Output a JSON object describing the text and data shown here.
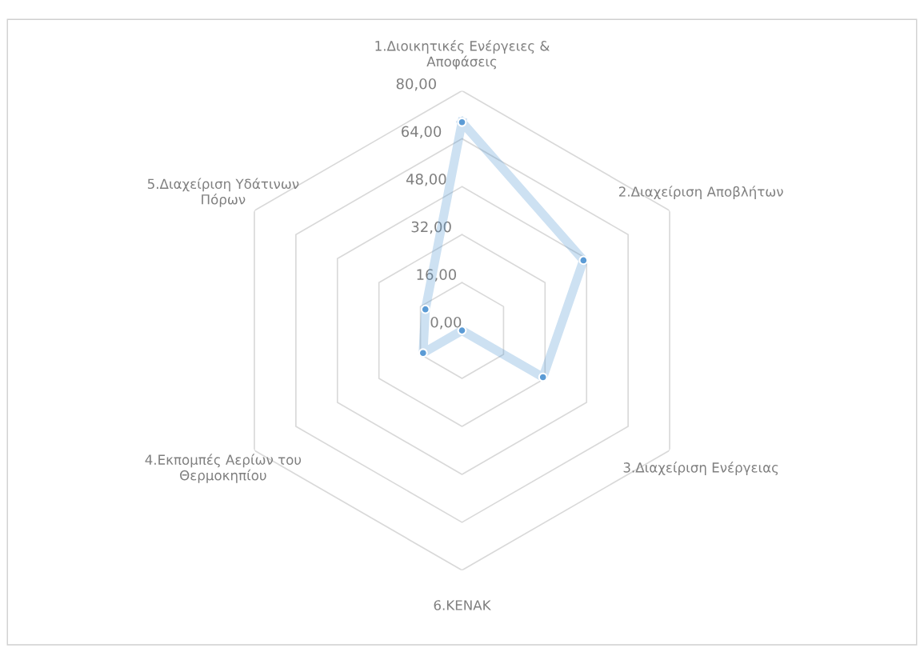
{
  "chart_data": {
    "type": "radar",
    "categories": [
      "1.Διοικητικές Ενέργειες &\nΑποφάσεις",
      "2.Διαχείριση Αποβλήτων",
      "3.Διαχείριση Ενέργειας",
      "6.ΚΕΝΑΚ",
      "4.Εκπομπές Αερίων του\nΘερμοκηπίου",
      "5.Διαχείριση Υδάτινων\nΠόρων"
    ],
    "series": [
      {
        "color": "#5b9bd5",
        "values": [
          69.5,
          46.8,
          31.2,
          0,
          15.0,
          14.1
        ]
      }
    ],
    "ylim": [
      0,
      80
    ],
    "yticks": [
      {
        "value": 0,
        "label": "0,00"
      },
      {
        "value": 16,
        "label": "16,00"
      },
      {
        "value": 32,
        "label": "32,00"
      },
      {
        "value": 48,
        "label": "48,00"
      },
      {
        "value": 64,
        "label": "64,00"
      },
      {
        "value": 80,
        "label": "80,00"
      }
    ],
    "grid": true,
    "marker": "circle",
    "line_style": "solid"
  }
}
